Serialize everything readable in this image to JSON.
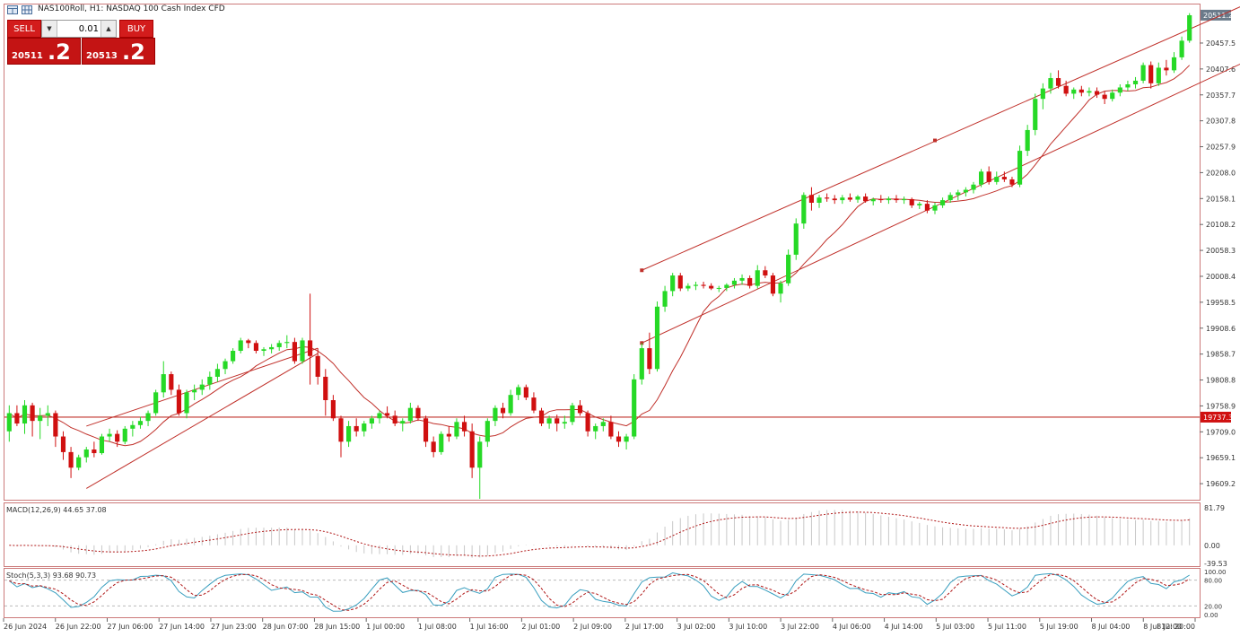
{
  "window": {
    "title": "NAS100Roll, H1:  NASDAQ 100 Cash Index CFD"
  },
  "trade_panel": {
    "sell_label": "SELL",
    "buy_label": "BUY",
    "volume": "0.01",
    "sell_price_main": "20511",
    "sell_price_big": ".2",
    "buy_price_main": "20513",
    "buy_price_big": ".2",
    "down_arrow_icon": "triangle-down",
    "up_arrow_icon": "triangle-up"
  },
  "price_axis": {
    "current_price_label": "20511.2",
    "line_price_label": "19737.3",
    "ticks": [
      "20457.5",
      "20407.6",
      "20357.7",
      "20307.8",
      "20257.9",
      "20208.0",
      "20158.1",
      "20108.2",
      "20058.3",
      "20008.4",
      "19958.5",
      "19908.6",
      "19858.7",
      "19808.8",
      "19758.9",
      "19709.0",
      "19659.1",
      "19609.2"
    ]
  },
  "time_axis": {
    "labels": [
      "26 Jun 2024",
      "26 Jun 22:00",
      "27 Jun 06:00",
      "27 Jun 14:00",
      "27 Jun 23:00",
      "28 Jun 07:00",
      "28 Jun 15:00",
      "1 Jul 00:00",
      "1 Jul 08:00",
      "1 Jul 16:00",
      "2 Jul 01:00",
      "2 Jul 09:00",
      "2 Jul 17:00",
      "3 Jul 02:00",
      "3 Jul 10:00",
      "3 Jul 22:00",
      "4 Jul 06:00",
      "4 Jul 14:00",
      "5 Jul 03:00",
      "5 Jul 11:00",
      "5 Jul 19:00",
      "8 Jul 04:00",
      "8 Jul 12:00",
      "8 Jul 20:00"
    ]
  },
  "macd": {
    "label": "MACD(12,26,9) 44.65 37.08",
    "scale": [
      "81.79",
      "0.00",
      "-39.53"
    ]
  },
  "stoch": {
    "label": "Stoch(5,3,3) 93.68 90.73",
    "scale": [
      "100.00",
      "80.00",
      "20.00",
      "0.00"
    ]
  },
  "colors": {
    "bull": "#26d926",
    "bear": "#d01010",
    "ma": "#c0302a",
    "trendline": "#c0302a",
    "macd_hist": "#c8c8c8",
    "macd_signal": "#b01818",
    "stoch_main": "#3a9fbf",
    "stoch_signal": "#b01818",
    "sell_button": "#d31c1c"
  },
  "chart_data": {
    "type": "candlestick",
    "symbol": "NAS100Roll",
    "timeframe": "H1",
    "ylim": [
      19580,
      20530
    ],
    "candles": [
      [
        19710,
        19760,
        19690,
        19745
      ],
      [
        19745,
        19760,
        19720,
        19725
      ],
      [
        19725,
        19770,
        19705,
        19760
      ],
      [
        19760,
        19765,
        19700,
        19730
      ],
      [
        19730,
        19755,
        19695,
        19740
      ],
      [
        19740,
        19760,
        19720,
        19745
      ],
      [
        19745,
        19750,
        19680,
        19700
      ],
      [
        19700,
        19710,
        19655,
        19670
      ],
      [
        19670,
        19680,
        19620,
        19640
      ],
      [
        19640,
        19665,
        19635,
        19660
      ],
      [
        19660,
        19680,
        19650,
        19675
      ],
      [
        19675,
        19690,
        19660,
        19668
      ],
      [
        19668,
        19705,
        19665,
        19700
      ],
      [
        19700,
        19715,
        19690,
        19705
      ],
      [
        19705,
        19712,
        19680,
        19690
      ],
      [
        19690,
        19720,
        19685,
        19715
      ],
      [
        19715,
        19730,
        19700,
        19722
      ],
      [
        19722,
        19738,
        19715,
        19730
      ],
      [
        19730,
        19750,
        19720,
        19745
      ],
      [
        19745,
        19790,
        19740,
        19785
      ],
      [
        19785,
        19845,
        19775,
        19820
      ],
      [
        19820,
        19825,
        19780,
        19790
      ],
      [
        19790,
        19800,
        19740,
        19745
      ],
      [
        19745,
        19790,
        19735,
        19785
      ],
      [
        19785,
        19800,
        19770,
        19790
      ],
      [
        19790,
        19810,
        19780,
        19800
      ],
      [
        19800,
        19825,
        19790,
        19815
      ],
      [
        19815,
        19840,
        19805,
        19830
      ],
      [
        19830,
        19850,
        19820,
        19845
      ],
      [
        19845,
        19870,
        19840,
        19865
      ],
      [
        19865,
        19890,
        19860,
        19885
      ],
      [
        19885,
        19888,
        19870,
        19880
      ],
      [
        19880,
        19885,
        19860,
        19865
      ],
      [
        19865,
        19872,
        19855,
        19868
      ],
      [
        19868,
        19878,
        19860,
        19872
      ],
      [
        19872,
        19885,
        19865,
        19880
      ],
      [
        19880,
        19895,
        19870,
        19882
      ],
      [
        19882,
        19890,
        19840,
        19845
      ],
      [
        19845,
        19890,
        19840,
        19885
      ],
      [
        19885,
        19975,
        19800,
        19855
      ],
      [
        19855,
        19870,
        19800,
        19815
      ],
      [
        19815,
        19830,
        19740,
        19770
      ],
      [
        19770,
        19780,
        19730,
        19735
      ],
      [
        19735,
        19740,
        19660,
        19690
      ],
      [
        19690,
        19730,
        19680,
        19720
      ],
      [
        19720,
        19735,
        19700,
        19710
      ],
      [
        19710,
        19730,
        19700,
        19725
      ],
      [
        19725,
        19740,
        19715,
        19735
      ],
      [
        19735,
        19750,
        19725,
        19745
      ],
      [
        19745,
        19758,
        19735,
        19740
      ],
      [
        19740,
        19750,
        19720,
        19725
      ],
      [
        19725,
        19735,
        19710,
        19730
      ],
      [
        19730,
        19765,
        19725,
        19755
      ],
      [
        19755,
        19760,
        19730,
        19735
      ],
      [
        19735,
        19740,
        19680,
        19690
      ],
      [
        19690,
        19700,
        19660,
        19670
      ],
      [
        19670,
        19710,
        19665,
        19705
      ],
      [
        19705,
        19720,
        19690,
        19700
      ],
      [
        19700,
        19735,
        19695,
        19728
      ],
      [
        19728,
        19740,
        19700,
        19710
      ],
      [
        19710,
        19725,
        19620,
        19640
      ],
      [
        19640,
        19700,
        19580,
        19690
      ],
      [
        19690,
        19735,
        19680,
        19730
      ],
      [
        19730,
        19760,
        19720,
        19755
      ],
      [
        19755,
        19765,
        19735,
        19745
      ],
      [
        19745,
        19790,
        19740,
        19780
      ],
      [
        19780,
        19800,
        19770,
        19795
      ],
      [
        19795,
        19800,
        19770,
        19775
      ],
      [
        19775,
        19785,
        19745,
        19750
      ],
      [
        19750,
        19755,
        19720,
        19725
      ],
      [
        19725,
        19740,
        19715,
        19735
      ],
      [
        19735,
        19742,
        19710,
        19725
      ],
      [
        19725,
        19740,
        19715,
        19728
      ],
      [
        19728,
        19765,
        19722,
        19760
      ],
      [
        19760,
        19770,
        19740,
        19745
      ],
      [
        19745,
        19750,
        19700,
        19710
      ],
      [
        19710,
        19725,
        19695,
        19720
      ],
      [
        19720,
        19735,
        19710,
        19728
      ],
      [
        19728,
        19740,
        19695,
        19700
      ],
      [
        19700,
        19710,
        19680,
        19690
      ],
      [
        19690,
        19705,
        19675,
        19700
      ],
      [
        19700,
        19820,
        19695,
        19810
      ],
      [
        19810,
        19880,
        19800,
        19870
      ],
      [
        19870,
        19900,
        19820,
        19830
      ],
      [
        19830,
        19960,
        19825,
        19950
      ],
      [
        19950,
        19990,
        19940,
        19980
      ],
      [
        19980,
        20015,
        19970,
        20010
      ],
      [
        20010,
        20015,
        19980,
        19985
      ],
      [
        19985,
        19995,
        19980,
        19990
      ],
      [
        19990,
        19998,
        19982,
        19992
      ],
      [
        19992,
        19998,
        19985,
        19990
      ],
      [
        19990,
        19995,
        19982,
        19985
      ],
      [
        19985,
        19990,
        19978,
        19986
      ],
      [
        19986,
        19995,
        19980,
        19992
      ],
      [
        19992,
        20005,
        19985,
        20000
      ],
      [
        20000,
        20012,
        19992,
        20005
      ],
      [
        20005,
        20010,
        19985,
        19990
      ],
      [
        19990,
        20030,
        19985,
        20020
      ],
      [
        20020,
        20028,
        20005,
        20010
      ],
      [
        20010,
        20015,
        19970,
        19975
      ],
      [
        19975,
        20000,
        19958,
        19995
      ],
      [
        19995,
        20060,
        19990,
        20050
      ],
      [
        20050,
        20120,
        20040,
        20110
      ],
      [
        20110,
        20170,
        20100,
        20165
      ],
      [
        20165,
        20180,
        20135,
        20150
      ],
      [
        20150,
        20165,
        20140,
        20160
      ],
      [
        20160,
        20168,
        20152,
        20158
      ],
      [
        20158,
        20165,
        20148,
        20155
      ],
      [
        20155,
        20165,
        20148,
        20160
      ],
      [
        20160,
        20168,
        20152,
        20156
      ],
      [
        20156,
        20165,
        20150,
        20162
      ],
      [
        20162,
        20168,
        20150,
        20153
      ],
      [
        20153,
        20160,
        20145,
        20157
      ],
      [
        20157,
        20165,
        20150,
        20155
      ],
      [
        20155,
        20162,
        20148,
        20158
      ],
      [
        20158,
        20165,
        20150,
        20155
      ],
      [
        20155,
        20162,
        20148,
        20157
      ],
      [
        20157,
        20160,
        20140,
        20145
      ],
      [
        20145,
        20152,
        20138,
        20148
      ],
      [
        20148,
        20155,
        20130,
        20135
      ],
      [
        20135,
        20150,
        20128,
        20145
      ],
      [
        20145,
        20160,
        20140,
        20155
      ],
      [
        20155,
        20170,
        20150,
        20165
      ],
      [
        20165,
        20175,
        20155,
        20170
      ],
      [
        20170,
        20180,
        20162,
        20175
      ],
      [
        20175,
        20190,
        20168,
        20185
      ],
      [
        20185,
        20215,
        20180,
        20210
      ],
      [
        20210,
        20220,
        20185,
        20190
      ],
      [
        20190,
        20210,
        20185,
        20200
      ],
      [
        20200,
        20210,
        20190,
        20195
      ],
      [
        20195,
        20200,
        20180,
        20185
      ],
      [
        20185,
        20260,
        20180,
        20250
      ],
      [
        20250,
        20300,
        20240,
        20290
      ],
      [
        20290,
        20360,
        20280,
        20350
      ],
      [
        20350,
        20380,
        20330,
        20370
      ],
      [
        20370,
        20400,
        20360,
        20390
      ],
      [
        20390,
        20405,
        20370,
        20375
      ],
      [
        20375,
        20385,
        20355,
        20360
      ],
      [
        20360,
        20372,
        20350,
        20368
      ],
      [
        20368,
        20375,
        20355,
        20362
      ],
      [
        20362,
        20372,
        20355,
        20365
      ],
      [
        20365,
        20372,
        20352,
        20358
      ],
      [
        20358,
        20365,
        20340,
        20350
      ],
      [
        20350,
        20368,
        20345,
        20362
      ],
      [
        20362,
        20378,
        20355,
        20372
      ],
      [
        20372,
        20385,
        20365,
        20378
      ],
      [
        20378,
        20392,
        20370,
        20385
      ],
      [
        20385,
        20420,
        20380,
        20415
      ],
      [
        20415,
        20422,
        20370,
        20380
      ],
      [
        20380,
        20420,
        20375,
        20410
      ],
      [
        20410,
        20425,
        20395,
        20405
      ],
      [
        20405,
        20440,
        20400,
        20430
      ],
      [
        20430,
        20470,
        20425,
        20462
      ],
      [
        20462,
        20515,
        20458,
        20511
      ]
    ],
    "horizontal_line": 19737.3,
    "current_price": 20511.2
  }
}
